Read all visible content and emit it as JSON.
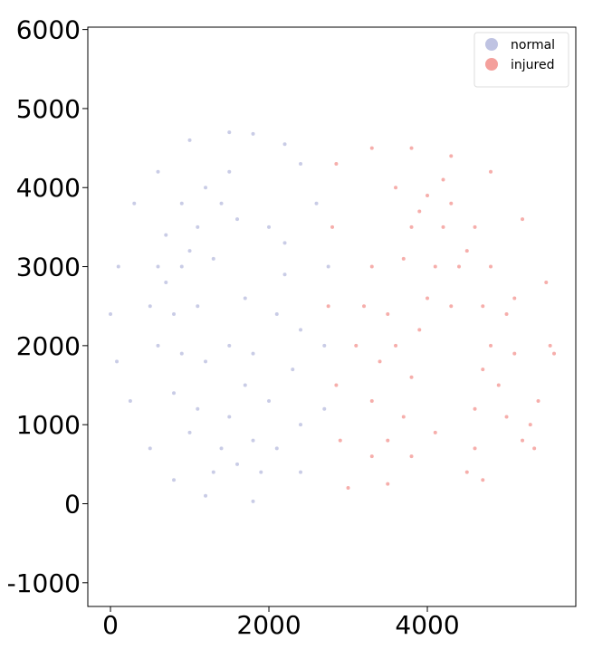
{
  "chart_data": {
    "type": "scatter",
    "xlim": [
      -286,
      5874
    ],
    "ylim": [
      -1300,
      6030
    ],
    "xticks": [
      0,
      2000,
      4000
    ],
    "yticks": [
      -1000,
      0,
      1000,
      2000,
      3000,
      4000,
      5000,
      6000
    ],
    "legend": "upper right",
    "series": [
      {
        "name": "normal",
        "color": "#bfc3e2",
        "x": [
          1500,
          1800,
          2200,
          1000,
          600,
          300,
          100,
          0,
          80,
          250,
          500,
          800,
          1200,
          1800,
          2400,
          2700,
          2700,
          2750,
          2600,
          2400,
          1200,
          900,
          1400,
          700,
          1100,
          1600,
          600,
          900,
          1300,
          2000,
          2200,
          500,
          800,
          1100,
          1700,
          2100,
          2400,
          600,
          900,
          1200,
          1800,
          2300,
          800,
          1100,
          1500,
          2000,
          2400,
          1000,
          1400,
          1800,
          2100,
          1600,
          1900,
          1300,
          2200,
          1500,
          1000,
          1500,
          700,
          1700
        ],
        "values": [
          4700,
          4680,
          4550,
          4600,
          4200,
          3800,
          3000,
          2400,
          1800,
          1300,
          700,
          300,
          100,
          30,
          400,
          1200,
          2000,
          3000,
          3800,
          4300,
          4000,
          3800,
          3800,
          3400,
          3500,
          3600,
          3000,
          3000,
          3100,
          3500,
          3300,
          2500,
          2400,
          2500,
          2600,
          2400,
          2200,
          2000,
          1900,
          1800,
          1900,
          1700,
          1400,
          1200,
          1100,
          1300,
          1000,
          900,
          700,
          800,
          700,
          500,
          400,
          400,
          2900,
          2000,
          3200,
          4200,
          2800,
          1500
        ]
      },
      {
        "name": "injured",
        "color": "#f4a09c",
        "x": [
          2850,
          3300,
          3800,
          4300,
          4800,
          5200,
          5500,
          5550,
          5400,
          5200,
          3000,
          3500,
          4700,
          2800,
          2750,
          2850,
          2900,
          5350,
          5300,
          5600,
          3600,
          4000,
          4300,
          3800,
          4200,
          4600,
          3300,
          3700,
          4100,
          4500,
          4800,
          3200,
          3500,
          3900,
          4300,
          4700,
          5000,
          3100,
          3400,
          3800,
          4800,
          5100,
          4900,
          3300,
          3700,
          4600,
          5000,
          3500,
          3800,
          4100,
          4600,
          4500,
          3300,
          4000,
          4700,
          4400,
          3600,
          5100,
          3900,
          4200
        ],
        "values": [
          4300,
          4500,
          4500,
          4400,
          4200,
          3600,
          2800,
          2000,
          1300,
          800,
          200,
          250,
          300,
          3500,
          2500,
          1500,
          800,
          700,
          1000,
          1900,
          4000,
          3900,
          3800,
          3500,
          3500,
          3500,
          3000,
          3100,
          3000,
          3200,
          3000,
          2500,
          2400,
          2200,
          2500,
          2500,
          2400,
          2000,
          1800,
          1600,
          2000,
          1900,
          1500,
          1300,
          1100,
          1200,
          1100,
          800,
          600,
          900,
          700,
          400,
          600,
          2600,
          1700,
          3000,
          2000,
          2600,
          3700,
          4100
        ]
      }
    ]
  }
}
